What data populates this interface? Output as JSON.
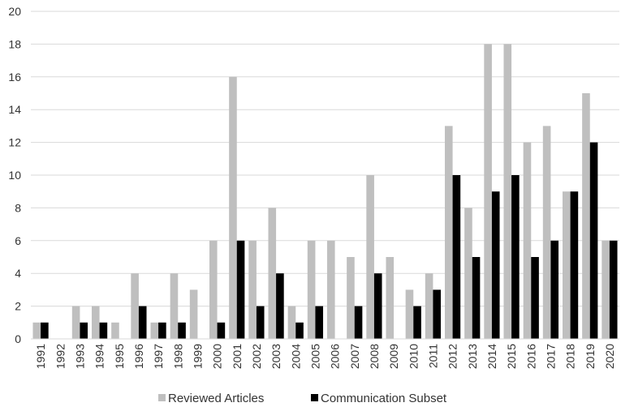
{
  "chart_data": {
    "type": "bar",
    "title": "",
    "xlabel": "",
    "ylabel": "",
    "ylim": [
      0,
      20
    ],
    "yticks": [
      0,
      2,
      4,
      6,
      8,
      10,
      12,
      14,
      16,
      18,
      20
    ],
    "grid": true,
    "legend_position": "bottom",
    "categories": [
      "1991",
      "1992",
      "1993",
      "1994",
      "1995",
      "1996",
      "1997",
      "1998",
      "1999",
      "2000",
      "2001",
      "2002",
      "2003",
      "2004",
      "2005",
      "2006",
      "2007",
      "2008",
      "2009",
      "2010",
      "2011",
      "2012",
      "2013",
      "2014",
      "2015",
      "2016",
      "2017",
      "2018",
      "2019",
      "2020"
    ],
    "series": [
      {
        "name": "Reviewed Articles",
        "color": "#bfbfbf",
        "values": [
          1,
          0,
          2,
          2,
          1,
          4,
          1,
          4,
          3,
          6,
          16,
          6,
          8,
          2,
          6,
          6,
          5,
          10,
          5,
          3,
          4,
          13,
          8,
          18,
          18,
          12,
          13,
          9,
          15,
          6
        ]
      },
      {
        "name": "Communication Subset",
        "color": "#000000",
        "values": [
          1,
          0,
          1,
          1,
          0,
          2,
          1,
          1,
          0,
          1,
          6,
          2,
          4,
          1,
          2,
          0,
          2,
          4,
          0,
          2,
          3,
          10,
          5,
          9,
          10,
          5,
          6,
          9,
          12,
          6
        ]
      }
    ]
  }
}
